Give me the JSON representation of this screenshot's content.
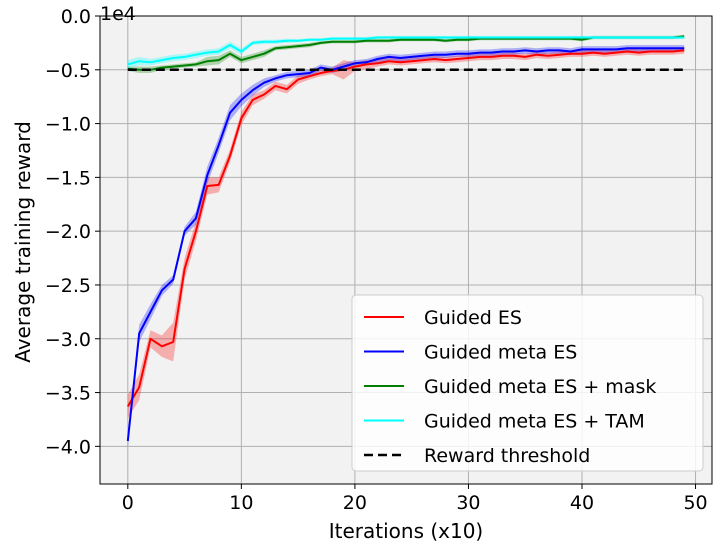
{
  "chart_data": {
    "type": "line",
    "title": "",
    "xlabel": "Iterations (x10)",
    "ylabel": "Average training reward",
    "offset_label": "1e4",
    "xlim": [
      -2.45,
      51.45
    ],
    "ylim": [
      -43500,
      0
    ],
    "xticks": [
      0,
      10,
      20,
      30,
      40,
      50
    ],
    "xtick_labels": [
      "0",
      "10",
      "20",
      "30",
      "40",
      "50"
    ],
    "yticks": [
      0,
      -5000,
      -10000,
      -15000,
      -20000,
      -25000,
      -30000,
      -35000,
      -40000
    ],
    "ytick_labels": [
      "0.0",
      "−0.5",
      "−1.0",
      "−1.5",
      "−2.0",
      "−2.5",
      "−3.0",
      "−3.5",
      "−4.0"
    ],
    "grid": true,
    "legend": "bottom-right",
    "x": [
      0,
      1,
      2,
      3,
      4,
      5,
      6,
      7,
      8,
      9,
      10,
      11,
      12,
      13,
      14,
      15,
      16,
      17,
      18,
      19,
      20,
      21,
      22,
      23,
      24,
      25,
      26,
      27,
      28,
      29,
      30,
      31,
      32,
      33,
      34,
      35,
      36,
      37,
      38,
      39,
      40,
      41,
      42,
      43,
      44,
      45,
      46,
      47,
      48,
      49
    ],
    "series": [
      {
        "name": "Guided ES",
        "color": "#ff0000",
        "values": [
          -36300,
          -34500,
          -30000,
          -30700,
          -30300,
          -23500,
          -20000,
          -15800,
          -15700,
          -13000,
          -9500,
          -7800,
          -7300,
          -6500,
          -6800,
          -5900,
          -5600,
          -5300,
          -5100,
          -5000,
          -4700,
          -4500,
          -4400,
          -4200,
          -4300,
          -4200,
          -4100,
          -4000,
          -4100,
          -4000,
          -3900,
          -3800,
          -3800,
          -3700,
          -3700,
          -3800,
          -3600,
          -3700,
          -3600,
          -3500,
          -3500,
          -3400,
          -3500,
          -3400,
          -3300,
          -3400,
          -3300,
          -3300,
          -3300,
          -3200
        ],
        "band": [
          1100,
          1200,
          800,
          1000,
          1800,
          1000,
          900,
          800,
          700,
          600,
          600,
          500,
          400,
          400,
          400,
          400,
          300,
          300,
          300,
          900,
          400,
          400,
          300,
          300,
          300,
          300,
          300,
          300,
          300,
          300,
          300,
          300,
          300,
          300,
          300,
          300,
          300,
          300,
          300,
          300,
          300,
          300,
          300,
          300,
          300,
          300,
          300,
          300,
          300,
          300
        ]
      },
      {
        "name": "Guided meta ES",
        "color": "#0000ff",
        "values": [
          -39500,
          -29500,
          -27500,
          -25500,
          -24500,
          -20000,
          -18800,
          -14800,
          -12000,
          -9000,
          -7800,
          -6900,
          -6200,
          -5800,
          -5500,
          -5400,
          -5300,
          -4800,
          -5000,
          -4700,
          -4400,
          -4300,
          -4000,
          -3800,
          -3900,
          -3800,
          -3700,
          -3600,
          -3600,
          -3500,
          -3500,
          -3400,
          -3400,
          -3300,
          -3300,
          -3200,
          -3300,
          -3200,
          -3200,
          -3300,
          -3100,
          -3100,
          -3100,
          -3100,
          -3000,
          -3000,
          -3000,
          -3000,
          -3000,
          -3000
        ],
        "band": [
          700,
          800,
          700,
          500,
          400,
          400,
          600,
          800,
          700,
          700,
          600,
          500,
          400,
          300,
          300,
          300,
          300,
          300,
          300,
          300,
          300,
          300,
          300,
          300,
          300,
          300,
          300,
          300,
          300,
          300,
          300,
          300,
          300,
          300,
          300,
          300,
          300,
          300,
          300,
          300,
          300,
          300,
          300,
          300,
          300,
          300,
          300,
          300,
          300,
          300
        ]
      },
      {
        "name": "Guided meta ES + mask",
        "color": "#008000",
        "values": [
          -4900,
          -5000,
          -5000,
          -4800,
          -4700,
          -4600,
          -4500,
          -4200,
          -4100,
          -3500,
          -4100,
          -3800,
          -3500,
          -3000,
          -2900,
          -2800,
          -2700,
          -2500,
          -2400,
          -2400,
          -2400,
          -2300,
          -2300,
          -2300,
          -2200,
          -2200,
          -2200,
          -2200,
          -2300,
          -2200,
          -2200,
          -2100,
          -2100,
          -2100,
          -2100,
          -2100,
          -2100,
          -2100,
          -2100,
          -2100,
          -2200,
          -2000,
          -2000,
          -2000,
          -2000,
          -2000,
          -2000,
          -2000,
          -2000,
          -1900
        ],
        "band": [
          200,
          300,
          300,
          200,
          200,
          200,
          200,
          400,
          400,
          300,
          300,
          300,
          300,
          200,
          200,
          200,
          200,
          150,
          150,
          150,
          150,
          150,
          150,
          150,
          150,
          150,
          150,
          150,
          150,
          150,
          150,
          150,
          150,
          150,
          150,
          150,
          150,
          150,
          150,
          150,
          150,
          150,
          150,
          150,
          150,
          150,
          150,
          150,
          150,
          150
        ]
      },
      {
        "name": "Guided meta ES + TAM",
        "color": "#00ffff",
        "values": [
          -4500,
          -4200,
          -4300,
          -4100,
          -3900,
          -3800,
          -3600,
          -3400,
          -3300,
          -2700,
          -3300,
          -2500,
          -2400,
          -2400,
          -2300,
          -2300,
          -2200,
          -2200,
          -2100,
          -2100,
          -2100,
          -2100,
          -2000,
          -2000,
          -2000,
          -2000,
          -2000,
          -2000,
          -2000,
          -2000,
          -2000,
          -2000,
          -2000,
          -2000,
          -2000,
          -2000,
          -2000,
          -2000,
          -2000,
          -2000,
          -2000,
          -2000,
          -2000,
          -2000,
          -2000,
          -2000,
          -2000,
          -2000,
          -2000,
          -2000
        ],
        "band": [
          400,
          400,
          300,
          300,
          300,
          300,
          300,
          300,
          300,
          300,
          300,
          200,
          200,
          200,
          200,
          150,
          150,
          150,
          150,
          150,
          150,
          150,
          150,
          150,
          150,
          150,
          150,
          150,
          150,
          150,
          150,
          150,
          150,
          150,
          150,
          150,
          150,
          150,
          150,
          150,
          150,
          150,
          150,
          150,
          150,
          150,
          150,
          150,
          150,
          150
        ]
      }
    ],
    "threshold": {
      "name": "Reward threshold",
      "value": -5000,
      "color": "#000000"
    }
  }
}
